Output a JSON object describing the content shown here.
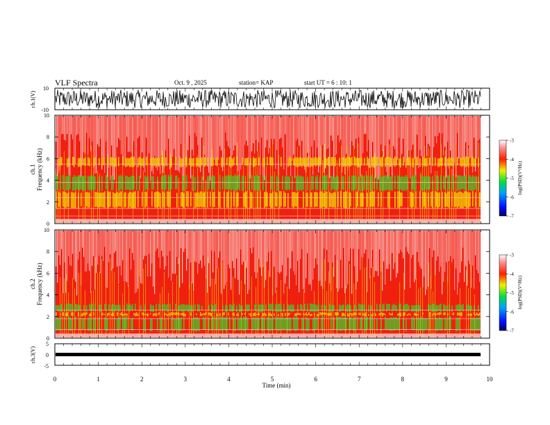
{
  "header": {
    "title": "VLF Spectra",
    "date": "Oct. 9 , 2025",
    "station": "station= KAP",
    "start": "start UT =  6 : 10: 1"
  },
  "chart_data": [
    {
      "id": "ch1-waveform",
      "type": "line",
      "ylabel": "ch.1(V)",
      "ylim": [
        -10,
        10
      ],
      "y_ticks": [
        "10",
        "-10"
      ],
      "xlim": [
        0,
        10
      ]
    },
    {
      "id": "ch1-spectrogram",
      "type": "heatmap",
      "ylabel_top": "ch.1",
      "ylabel": "Frequency (kHz)",
      "ylim": [
        0,
        10
      ],
      "y_ticks": [
        0,
        2,
        4,
        6,
        8,
        10
      ],
      "xlim": [
        0,
        10
      ],
      "colorbar": {
        "label": "log(PSD)(V²/Hz)",
        "range": [
          -7,
          -3
        ],
        "ticks": [
          "-3",
          "-4",
          "-5",
          "-6",
          "-7"
        ]
      }
    },
    {
      "id": "ch2-spectrogram",
      "type": "heatmap",
      "ylabel_top": "ch.2",
      "ylabel": "Frequency (kHz)",
      "ylim": [
        0,
        10
      ],
      "y_ticks": [
        0,
        2,
        4,
        6,
        8,
        10
      ],
      "xlim": [
        0,
        10
      ],
      "colorbar": {
        "label": "log(PSD)(V²/Hz)",
        "range": [
          -7,
          -3
        ],
        "ticks": [
          "-3",
          "-4",
          "-5",
          "-6",
          "-7"
        ]
      }
    },
    {
      "id": "ch3-waveform",
      "type": "line",
      "ylabel": "ch.3(V)",
      "ylim": [
        -5,
        5
      ],
      "y_ticks": [
        "5",
        "0",
        "-5"
      ],
      "xlim": [
        0,
        10
      ]
    }
  ],
  "xaxis": {
    "label": "Time (min)",
    "ticks": [
      "0",
      "1",
      "2",
      "3",
      "4",
      "5",
      "6",
      "7",
      "8",
      "9",
      "10"
    ]
  }
}
